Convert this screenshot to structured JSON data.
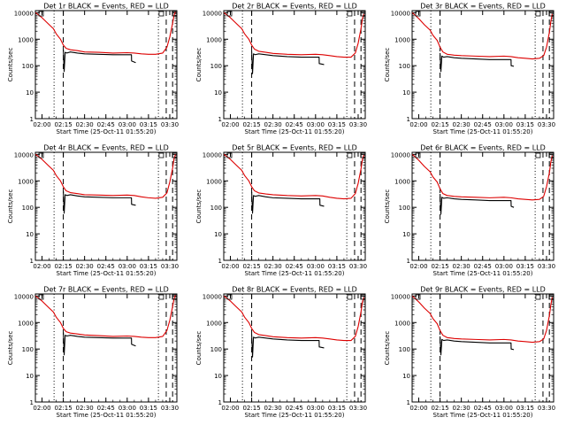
{
  "colors": {
    "events": "#000000",
    "lld": "#dd0000",
    "axis": "#000000"
  },
  "shared": {
    "ylabel": "Counts/sec",
    "xlabel": "Start Time (25-Oct-11 01:55:20)",
    "x_ticks": [
      "02:00",
      "02:15",
      "02:30",
      "02:45",
      "03:00",
      "03:15",
      "03:30"
    ],
    "x_tick_minutes": [
      120,
      135,
      150,
      165,
      180,
      195,
      210
    ],
    "xlim_minutes": [
      115.33,
      215
    ],
    "y_ticks": [
      "1",
      "10",
      "100",
      "1000",
      "10000"
    ],
    "y_tick_values": [
      1,
      10,
      100,
      1000,
      10000
    ],
    "ylim": [
      1,
      12000
    ],
    "y_scale": "log"
  },
  "chart_data": [
    {
      "type": "line",
      "title": "Det 1r BLACK = Events, RED = LLD",
      "marker_lines": [
        {
          "x": 128.5,
          "style": "dotted"
        },
        {
          "x": 135.0,
          "style": "dashed"
        },
        {
          "x": 202.0,
          "style": "dotted"
        },
        {
          "x": 207.5,
          "style": "dashed"
        },
        {
          "x": 212.0,
          "style": "dashed"
        }
      ],
      "series": [
        {
          "color": "#dd0000",
          "x": [
            115.5,
            120,
            124,
            128,
            130,
            133,
            135,
            137,
            140,
            145,
            150,
            160,
            170,
            180,
            185,
            190,
            195,
            200,
            205,
            208,
            210,
            212,
            213,
            214
          ],
          "y": [
            10000,
            6500,
            4000,
            2500,
            1600,
            1000,
            600,
            450,
            400,
            370,
            330,
            320,
            300,
            310,
            300,
            280,
            270,
            270,
            300,
            500,
            1200,
            4000,
            8000,
            11000
          ]
        },
        {
          "color": "#000000",
          "x": [
            135,
            135.6,
            136.3,
            137.5,
            140,
            145,
            150,
            160,
            170,
            183,
            183.1,
            186
          ],
          "y": [
            400,
            60,
            320,
            300,
            330,
            300,
            280,
            270,
            260,
            260,
            150,
            130
          ]
        }
      ]
    },
    {
      "type": "line",
      "title": "Det 2r BLACK = Events, RED = LLD",
      "marker_lines": [
        {
          "x": 128.5,
          "style": "dotted"
        },
        {
          "x": 135.0,
          "style": "dashed"
        },
        {
          "x": 202.0,
          "style": "dotted"
        },
        {
          "x": 207.5,
          "style": "dashed"
        },
        {
          "x": 212.0,
          "style": "dashed"
        }
      ],
      "series": [
        {
          "color": "#dd0000",
          "x": [
            115.5,
            120,
            124,
            128,
            130,
            133,
            135,
            137,
            140,
            145,
            150,
            160,
            170,
            180,
            185,
            190,
            195,
            200,
            205,
            208,
            210,
            212,
            213,
            214
          ],
          "y": [
            10000,
            6500,
            4000,
            2500,
            1600,
            1000,
            600,
            420,
            350,
            320,
            290,
            270,
            260,
            270,
            260,
            240,
            220,
            210,
            210,
            300,
            700,
            2500,
            6000,
            9000
          ]
        },
        {
          "color": "#000000",
          "x": [
            135,
            135.6,
            136.3,
            137.5,
            140,
            145,
            150,
            160,
            170,
            182.5,
            182.6,
            186
          ],
          "y": [
            350,
            50,
            280,
            260,
            280,
            260,
            240,
            220,
            210,
            210,
            120,
            110
          ]
        }
      ]
    },
    {
      "type": "line",
      "title": "Det 3r BLACK = Events, RED = LLD",
      "marker_lines": [
        {
          "x": 128.5,
          "style": "dotted"
        },
        {
          "x": 135.0,
          "style": "dashed"
        },
        {
          "x": 202.0,
          "style": "dotted"
        },
        {
          "x": 207.5,
          "style": "dashed"
        },
        {
          "x": 212.0,
          "style": "dashed"
        }
      ],
      "series": [
        {
          "color": "#dd0000",
          "x": [
            115.5,
            120,
            124,
            128,
            130,
            133,
            135,
            137,
            140,
            145,
            150,
            160,
            170,
            180,
            185,
            190,
            195,
            200,
            205,
            208,
            210,
            212,
            213,
            214
          ],
          "y": [
            10000,
            6000,
            3500,
            2200,
            1400,
            900,
            500,
            330,
            270,
            250,
            240,
            230,
            220,
            230,
            220,
            200,
            190,
            180,
            190,
            240,
            500,
            1800,
            4500,
            9000
          ]
        },
        {
          "color": "#000000",
          "x": [
            135,
            135.6,
            136.3,
            137.5,
            140,
            145,
            150,
            160,
            170,
            185,
            185.1,
            187
          ],
          "y": [
            300,
            60,
            230,
            210,
            220,
            200,
            190,
            180,
            170,
            170,
            100,
            95
          ]
        }
      ]
    },
    {
      "type": "line",
      "title": "Det 4r BLACK = Events, RED = LLD",
      "marker_lines": [
        {
          "x": 128.5,
          "style": "dotted"
        },
        {
          "x": 135.0,
          "style": "dashed"
        },
        {
          "x": 202.0,
          "style": "dotted"
        },
        {
          "x": 207.5,
          "style": "dashed"
        },
        {
          "x": 212.0,
          "style": "dashed"
        }
      ],
      "series": [
        {
          "color": "#dd0000",
          "x": [
            115.5,
            120,
            124,
            128,
            130,
            133,
            135,
            137,
            140,
            145,
            150,
            160,
            170,
            180,
            185,
            190,
            195,
            200,
            205,
            208,
            210,
            212,
            213,
            214
          ],
          "y": [
            10000,
            6500,
            4000,
            2500,
            1600,
            1000,
            600,
            420,
            360,
            330,
            300,
            290,
            280,
            290,
            280,
            250,
            230,
            220,
            240,
            350,
            900,
            3000,
            7000,
            10000
          ]
        },
        {
          "color": "#000000",
          "x": [
            135,
            135.6,
            136.3,
            137.5,
            140,
            145,
            150,
            160,
            170,
            183,
            183.1,
            186
          ],
          "y": [
            400,
            60,
            300,
            280,
            300,
            270,
            250,
            240,
            230,
            230,
            130,
            120
          ]
        }
      ]
    },
    {
      "type": "line",
      "title": "Det 5r BLACK = Events, RED = LLD",
      "marker_lines": [
        {
          "x": 128.5,
          "style": "dotted"
        },
        {
          "x": 135.0,
          "style": "dashed"
        },
        {
          "x": 202.0,
          "style": "dotted"
        },
        {
          "x": 207.5,
          "style": "dashed"
        },
        {
          "x": 212.0,
          "style": "dashed"
        }
      ],
      "series": [
        {
          "color": "#dd0000",
          "x": [
            115.5,
            120,
            124,
            128,
            130,
            133,
            135,
            137,
            140,
            145,
            150,
            160,
            170,
            180,
            185,
            190,
            195,
            200,
            205,
            208,
            210,
            212,
            213,
            214
          ],
          "y": [
            10000,
            6500,
            4000,
            2500,
            1600,
            1000,
            600,
            420,
            350,
            320,
            300,
            280,
            270,
            280,
            270,
            240,
            220,
            210,
            220,
            330,
            800,
            2800,
            6500,
            9500
          ]
        },
        {
          "color": "#000000",
          "x": [
            135,
            135.6,
            136.3,
            137.5,
            140,
            145,
            150,
            160,
            170,
            183,
            183.1,
            186
          ],
          "y": [
            380,
            60,
            280,
            260,
            280,
            250,
            230,
            220,
            210,
            210,
            120,
            110
          ]
        }
      ]
    },
    {
      "type": "line",
      "title": "Det 6r BLACK = Events, RED = LLD",
      "marker_lines": [
        {
          "x": 128.5,
          "style": "dotted"
        },
        {
          "x": 135.0,
          "style": "dashed"
        },
        {
          "x": 202.0,
          "style": "dotted"
        },
        {
          "x": 207.5,
          "style": "dashed"
        },
        {
          "x": 212.0,
          "style": "dashed"
        }
      ],
      "series": [
        {
          "color": "#dd0000",
          "x": [
            115.5,
            120,
            124,
            128,
            130,
            133,
            135,
            137,
            140,
            145,
            150,
            160,
            170,
            180,
            185,
            190,
            195,
            200,
            205,
            208,
            210,
            212,
            213,
            214
          ],
          "y": [
            10000,
            6000,
            3500,
            2200,
            1400,
            900,
            500,
            330,
            280,
            260,
            250,
            240,
            230,
            240,
            230,
            210,
            200,
            190,
            200,
            260,
            600,
            2000,
            5000,
            9000
          ]
        },
        {
          "color": "#000000",
          "x": [
            135,
            135.6,
            136.3,
            137.5,
            140,
            145,
            150,
            160,
            170,
            185,
            185.1,
            187
          ],
          "y": [
            320,
            55,
            240,
            220,
            230,
            210,
            200,
            190,
            180,
            180,
            110,
            100
          ]
        }
      ]
    },
    {
      "type": "line",
      "title": "Det 7r BLACK = Events, RED = LLD",
      "marker_lines": [
        {
          "x": 128.5,
          "style": "dotted"
        },
        {
          "x": 135.0,
          "style": "dashed"
        },
        {
          "x": 202.0,
          "style": "dotted"
        },
        {
          "x": 207.5,
          "style": "dashed"
        },
        {
          "x": 212.0,
          "style": "dashed"
        }
      ],
      "series": [
        {
          "color": "#dd0000",
          "x": [
            115.5,
            120,
            124,
            128,
            130,
            133,
            135,
            137,
            140,
            145,
            150,
            160,
            170,
            180,
            185,
            190,
            195,
            200,
            205,
            208,
            210,
            212,
            213,
            214
          ],
          "y": [
            10000,
            6500,
            4000,
            2500,
            1600,
            1000,
            600,
            450,
            400,
            370,
            340,
            320,
            300,
            310,
            300,
            280,
            270,
            270,
            300,
            500,
            1200,
            4000,
            8000,
            11000
          ]
        },
        {
          "color": "#000000",
          "x": [
            135,
            135.6,
            136.3,
            137.5,
            140,
            145,
            150,
            160,
            170,
            183,
            183.1,
            186
          ],
          "y": [
            420,
            60,
            330,
            310,
            330,
            300,
            280,
            270,
            260,
            260,
            150,
            130
          ]
        }
      ]
    },
    {
      "type": "line",
      "title": "Det 8r BLACK = Events, RED = LLD",
      "marker_lines": [
        {
          "x": 128.5,
          "style": "dotted"
        },
        {
          "x": 135.0,
          "style": "dashed"
        },
        {
          "x": 202.0,
          "style": "dotted"
        },
        {
          "x": 207.5,
          "style": "dashed"
        },
        {
          "x": 212.0,
          "style": "dashed"
        }
      ],
      "series": [
        {
          "color": "#dd0000",
          "x": [
            115.5,
            120,
            124,
            128,
            130,
            133,
            135,
            137,
            140,
            145,
            150,
            160,
            170,
            180,
            185,
            190,
            195,
            200,
            205,
            208,
            210,
            212,
            213,
            214
          ],
          "y": [
            10000,
            6500,
            4000,
            2500,
            1600,
            1000,
            600,
            420,
            350,
            320,
            290,
            270,
            260,
            270,
            260,
            240,
            220,
            210,
            210,
            300,
            700,
            2500,
            6000,
            9000
          ]
        },
        {
          "color": "#000000",
          "x": [
            135,
            135.6,
            136.3,
            137.5,
            140,
            145,
            150,
            160,
            170,
            182.5,
            182.6,
            186
          ],
          "y": [
            350,
            50,
            280,
            260,
            280,
            260,
            240,
            220,
            210,
            210,
            120,
            110
          ]
        }
      ]
    },
    {
      "type": "line",
      "title": "Det 9r BLACK = Events, RED = LLD",
      "marker_lines": [
        {
          "x": 128.5,
          "style": "dotted"
        },
        {
          "x": 135.0,
          "style": "dashed"
        },
        {
          "x": 202.0,
          "style": "dotted"
        },
        {
          "x": 207.5,
          "style": "dashed"
        },
        {
          "x": 212.0,
          "style": "dashed"
        }
      ],
      "series": [
        {
          "color": "#dd0000",
          "x": [
            115.5,
            120,
            124,
            128,
            130,
            133,
            135,
            137,
            140,
            145,
            150,
            160,
            170,
            180,
            185,
            190,
            195,
            200,
            205,
            208,
            210,
            212,
            213,
            214
          ],
          "y": [
            10000,
            6000,
            3500,
            2200,
            1400,
            900,
            500,
            330,
            270,
            250,
            240,
            230,
            220,
            230,
            220,
            200,
            190,
            180,
            190,
            240,
            500,
            1800,
            4500,
            9000
          ]
        },
        {
          "color": "#000000",
          "x": [
            135,
            135.6,
            136.3,
            137.5,
            140,
            145,
            150,
            160,
            170,
            185,
            185.1,
            187
          ],
          "y": [
            300,
            60,
            230,
            210,
            220,
            200,
            190,
            180,
            170,
            170,
            100,
            95
          ]
        }
      ]
    }
  ]
}
